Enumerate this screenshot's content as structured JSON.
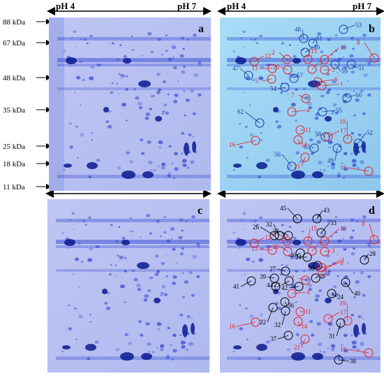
{
  "header": {
    "ph_left_1": "pH 4",
    "ph_right_1": "pH 7",
    "ph_left_2": "pH 4",
    "ph_right_2": "pH 7"
  },
  "mw_axis": {
    "markers": [
      "88 kDa",
      "67 kDa",
      "48 kDa",
      "35 kDa",
      "25 kDa",
      "18 kDa",
      "11 kDa"
    ]
  },
  "panels": {
    "a": {
      "letter": "a"
    },
    "b": {
      "letter": "b"
    },
    "c": {
      "letter": "c"
    },
    "d": {
      "letter": "d"
    }
  },
  "panel_b_labels": {
    "blue": [
      "48",
      "53",
      "61",
      "50",
      "59",
      "51",
      "47",
      "57",
      "54",
      "60",
      "55",
      "58",
      "62",
      "63",
      "56",
      "49",
      "52"
    ],
    "red": [
      "12",
      "2",
      "15",
      "10",
      "8",
      "13",
      "20",
      "9",
      "3",
      "5",
      "6",
      "1",
      "7",
      "4",
      "11",
      "17",
      "19",
      "14",
      "16",
      "21",
      "18"
    ]
  },
  "panel_d_labels": {
    "black": [
      "45",
      "43",
      "33",
      "26",
      "32",
      "25",
      "28",
      "34",
      "46",
      "30",
      "27",
      "29",
      "41",
      "39",
      "44",
      "23",
      "42",
      "40",
      "24",
      "36",
      "22",
      "32",
      "31",
      "37",
      "38"
    ],
    "red": [
      "12",
      "2",
      "15",
      "10",
      "8",
      "13",
      "20",
      "9",
      "3",
      "6",
      "1",
      "7",
      "4",
      "11",
      "17",
      "19",
      "14",
      "16",
      "21",
      "18"
    ]
  },
  "colors": {
    "gel_bg": "#b9c3f1",
    "gel_bg_b": "#9ad2f2",
    "spot": "#2a3fd0",
    "spot_dark": "#0a1a8f",
    "red_label": "#e0202a",
    "blue_label": "#1a3aa0",
    "black_label": "#000000"
  }
}
